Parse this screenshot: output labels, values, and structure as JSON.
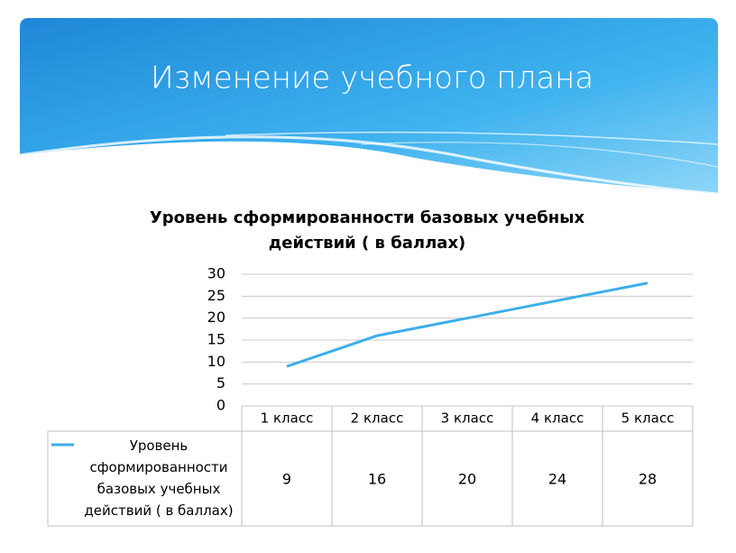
{
  "header": {
    "title": "Изменение учебного плана"
  },
  "chart_data": {
    "type": "line",
    "title": "Уровень сформированности базовых учебных действий ( в баллах)",
    "categories": [
      "1 класс",
      "2 класс",
      "3 класс",
      "4 класс",
      "5 класс"
    ],
    "series": [
      {
        "name": "Уровень сформированности базовых учебных действий ( в баллах)",
        "color": "#3daeea",
        "values": [
          9,
          16,
          20,
          24,
          28
        ]
      }
    ],
    "ylim": [
      0,
      30
    ],
    "yticks": [
      0,
      5,
      10,
      15,
      20,
      25,
      30
    ],
    "grid": true,
    "data_table": true
  }
}
